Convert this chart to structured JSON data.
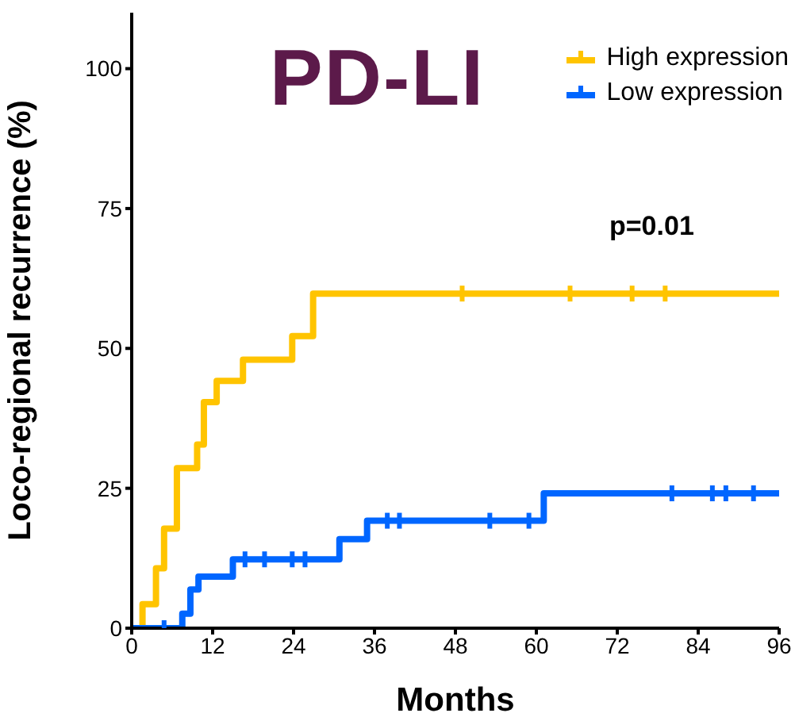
{
  "chart_data": {
    "type": "step",
    "title": "PD-LI",
    "xlabel": "Months",
    "ylabel": "Loco-regional recurrence (%)",
    "xlim": [
      0,
      96
    ],
    "xticks": [
      0,
      12,
      24,
      36,
      48,
      60,
      72,
      84,
      96
    ],
    "ylim": [
      0,
      110
    ],
    "yticks": [
      0,
      25,
      50,
      75,
      100
    ],
    "grid": false,
    "legend": "top right",
    "annotations": [
      "p=0.01"
    ],
    "series": [
      {
        "name": "High expression",
        "color": "#ffc400",
        "x": [
          0,
          1.6,
          3.6,
          4.8,
          6.7,
          9.7,
          10.7,
          12.6,
          16.5,
          23.8,
          26.9,
          96
        ],
        "values": [
          0,
          4.3,
          10.7,
          17.8,
          28.6,
          32.8,
          40.4,
          44.2,
          48,
          52.2,
          59.8,
          59.8
        ]
      },
      {
        "name": "Low expression",
        "color": "#0066ff",
        "x": [
          0,
          7.5,
          8.7,
          9.9,
          15,
          30.8,
          34.9,
          61.1,
          96
        ],
        "values": [
          0,
          2.6,
          6.9,
          9.2,
          12.3,
          15.9,
          19.2,
          24.1,
          24.1
        ]
      },
      {
        "type": "scatter",
        "color": "#ffc400",
        "x": [
          49,
          65,
          74.2,
          79.1
        ],
        "values": [
          59.8,
          59.8,
          59.8,
          59.8
        ]
      },
      {
        "type": "scatter",
        "color": "#0066ff",
        "x": [
          4.8,
          16.8,
          19.7,
          23.8,
          25.7,
          37.9,
          39.7,
          53.1,
          58.9,
          80.1,
          86.1,
          88.1,
          92.2
        ],
        "values": [
          0,
          12.3,
          12.3,
          12.3,
          12.3,
          19.2,
          19.2,
          19.2,
          19.2,
          24.1,
          24.1,
          24.1,
          24.1
        ]
      }
    ]
  }
}
